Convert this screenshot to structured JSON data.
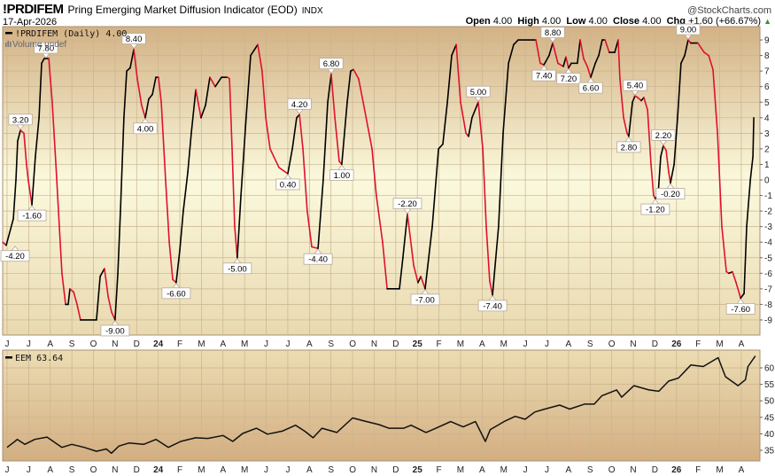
{
  "header": {
    "symbol": "!PRDIFEM",
    "name": "Pring Emerging Market Diffusion Indicator (EOD)",
    "exchange": "INDX",
    "brand": "@StockCharts.com",
    "date": "17-Apr-2026",
    "open_label": "Open",
    "open": "4.00",
    "high_label": "High",
    "high": "4.00",
    "low_label": "Low",
    "low": "4.00",
    "close_label": "Close",
    "close": "4.00",
    "chg_label": "Chg",
    "chg": "+1.60 (+66.67%)",
    "up_color": "#2a9a2a"
  },
  "colors": {
    "rising": "#000000",
    "falling": "#e0102f",
    "grid": "#c9b48e"
  },
  "chart_data": [
    {
      "type": "line",
      "title": "!PRDIFEM (Daily) 4.00",
      "volume_legend": "Volume undef",
      "x_unit": "months since Jun 2023",
      "ylim": [
        -10,
        10
      ],
      "yticks": [
        "9",
        "8",
        "7",
        "6",
        "5",
        "4",
        "3",
        "2",
        "1",
        "0",
        "-1",
        "-2",
        "-3",
        "-4",
        "-5",
        "-6",
        "-7",
        "-8",
        "-9"
      ],
      "month_labels": [
        "J",
        "J",
        "A",
        "S",
        "O",
        "N",
        "D",
        "24",
        "F",
        "M",
        "A",
        "M",
        "J",
        "J",
        "A",
        "S",
        "O",
        "N",
        "D",
        "25",
        "F",
        "M",
        "A",
        "M",
        "J",
        "J",
        "A",
        "S",
        "O",
        "N",
        "D",
        "26",
        "F",
        "M",
        "A"
      ],
      "grid": true,
      "points": [
        [
          -0.21,
          -4.0
        ],
        [
          -0.04,
          -4.2
        ],
        [
          0.29,
          -2.5
        ],
        [
          0.41,
          0
        ],
        [
          0.49,
          2.5
        ],
        [
          0.62,
          3.2
        ],
        [
          0.78,
          3.0
        ],
        [
          0.9,
          1
        ],
        [
          0.98,
          0
        ],
        [
          1.15,
          -1.6
        ],
        [
          1.31,
          1.5
        ],
        [
          1.48,
          4
        ],
        [
          1.6,
          7.5
        ],
        [
          1.72,
          7.8
        ],
        [
          1.93,
          7.8
        ],
        [
          2.09,
          5
        ],
        [
          2.26,
          1
        ],
        [
          2.42,
          -3
        ],
        [
          2.54,
          -6
        ],
        [
          2.71,
          -8
        ],
        [
          2.83,
          -8
        ],
        [
          2.91,
          -7
        ],
        [
          3.08,
          -7.2
        ],
        [
          3.24,
          -8
        ],
        [
          3.4,
          -9
        ],
        [
          4.14,
          -9
        ],
        [
          4.31,
          -6.2
        ],
        [
          4.51,
          -5.7
        ],
        [
          4.68,
          -7.5
        ],
        [
          4.84,
          -8.5
        ],
        [
          5.0,
          -9
        ],
        [
          5.13,
          -6
        ],
        [
          5.25,
          -2
        ],
        [
          5.41,
          4
        ],
        [
          5.54,
          7
        ],
        [
          5.7,
          7.2
        ],
        [
          5.87,
          8.4
        ],
        [
          6.03,
          6.5
        ],
        [
          6.23,
          4.8
        ],
        [
          6.4,
          4.0
        ],
        [
          6.56,
          5.2
        ],
        [
          6.73,
          5.5
        ],
        [
          6.89,
          6.6
        ],
        [
          7.01,
          6.6
        ],
        [
          7.14,
          5
        ],
        [
          7.34,
          0
        ],
        [
          7.51,
          -4
        ],
        [
          7.67,
          -6.4
        ],
        [
          7.83,
          -6.6
        ],
        [
          8.0,
          -4.5
        ],
        [
          8.16,
          -2
        ],
        [
          8.37,
          0.5
        ],
        [
          8.53,
          3
        ],
        [
          8.74,
          5.8
        ],
        [
          8.86,
          4.9
        ],
        [
          8.98,
          4.0
        ],
        [
          9.19,
          4.8
        ],
        [
          9.39,
          6.6
        ],
        [
          9.64,
          6.0
        ],
        [
          9.93,
          6.6
        ],
        [
          10.21,
          6.6
        ],
        [
          10.3,
          6.5
        ],
        [
          10.42,
          2
        ],
        [
          10.54,
          -3
        ],
        [
          10.66,
          -5.0
        ],
        [
          10.83,
          -1
        ],
        [
          11.07,
          4
        ],
        [
          11.28,
          8
        ],
        [
          11.61,
          8.7
        ],
        [
          11.81,
          7
        ],
        [
          11.98,
          4
        ],
        [
          12.18,
          2
        ],
        [
          12.35,
          1.5
        ],
        [
          12.59,
          0.8
        ],
        [
          13.0,
          0.4
        ],
        [
          13.21,
          2
        ],
        [
          13.41,
          4
        ],
        [
          13.54,
          4.2
        ],
        [
          13.7,
          2
        ],
        [
          13.9,
          -2
        ],
        [
          14.11,
          -4.3
        ],
        [
          14.4,
          -4.4
        ],
        [
          14.64,
          0
        ],
        [
          14.85,
          5
        ],
        [
          15.01,
          6.8
        ],
        [
          15.18,
          4
        ],
        [
          15.38,
          1.2
        ],
        [
          15.5,
          1.0
        ],
        [
          15.75,
          5
        ],
        [
          15.91,
          7.0
        ],
        [
          16.04,
          7.1
        ],
        [
          16.28,
          6.5
        ],
        [
          16.49,
          5
        ],
        [
          16.9,
          2
        ],
        [
          17.1,
          -1
        ],
        [
          17.39,
          -4
        ],
        [
          17.6,
          -7.0
        ],
        [
          18.17,
          -7.0
        ],
        [
          18.33,
          -5
        ],
        [
          18.54,
          -2.2
        ],
        [
          18.83,
          -5.5
        ],
        [
          19.03,
          -6.6
        ],
        [
          19.16,
          -6.2
        ],
        [
          19.36,
          -7.0
        ],
        [
          19.69,
          -3
        ],
        [
          19.98,
          2
        ],
        [
          20.18,
          2.3
        ],
        [
          20.39,
          5
        ],
        [
          20.59,
          8.0
        ],
        [
          20.8,
          8.7
        ],
        [
          21.0,
          5
        ],
        [
          21.25,
          3
        ],
        [
          21.37,
          2.8
        ],
        [
          21.53,
          4
        ],
        [
          21.82,
          5.0
        ],
        [
          22.03,
          2
        ],
        [
          22.19,
          -3
        ],
        [
          22.35,
          -6.5
        ],
        [
          22.48,
          -7.4
        ],
        [
          22.76,
          -3
        ],
        [
          22.97,
          3
        ],
        [
          23.22,
          7.5
        ],
        [
          23.46,
          8.7
        ],
        [
          23.67,
          9.0
        ],
        [
          24.49,
          9.0
        ],
        [
          24.69,
          7.5
        ],
        [
          24.86,
          7.4
        ],
        [
          25.1,
          8.0
        ],
        [
          25.27,
          8.8
        ],
        [
          25.51,
          7.5
        ],
        [
          25.76,
          7.3
        ],
        [
          25.88,
          7.9
        ],
        [
          26.0,
          7.2
        ],
        [
          26.13,
          7.5
        ],
        [
          26.41,
          7.5
        ],
        [
          26.54,
          9.0
        ],
        [
          26.7,
          7.8
        ],
        [
          26.87,
          7.3
        ],
        [
          27.03,
          6.6
        ],
        [
          27.24,
          7.5
        ],
        [
          27.4,
          8.0
        ],
        [
          27.56,
          9.0
        ],
        [
          27.69,
          9.0
        ],
        [
          27.89,
          8.2
        ],
        [
          28.14,
          8.2
        ],
        [
          28.3,
          9.0
        ],
        [
          28.38,
          6.5
        ],
        [
          28.55,
          4
        ],
        [
          28.71,
          3
        ],
        [
          28.79,
          2.8
        ],
        [
          28.96,
          5.0
        ],
        [
          29.08,
          5.4
        ],
        [
          29.2,
          5.3
        ],
        [
          29.37,
          5.1
        ],
        [
          29.49,
          5.3
        ],
        [
          29.66,
          4.5
        ],
        [
          29.82,
          1
        ],
        [
          29.94,
          -1
        ],
        [
          30.02,
          -1.2
        ],
        [
          30.15,
          -0.9
        ],
        [
          30.27,
          1.5
        ],
        [
          30.39,
          2.2
        ],
        [
          30.52,
          1.9
        ],
        [
          30.64,
          0.5
        ],
        [
          30.72,
          -0.2
        ],
        [
          30.89,
          1
        ],
        [
          31.05,
          4
        ],
        [
          31.21,
          7.5
        ],
        [
          31.38,
          8.0
        ],
        [
          31.54,
          9.0
        ],
        [
          31.66,
          8.8
        ],
        [
          31.99,
          8.8
        ],
        [
          32.28,
          8.2
        ],
        [
          32.49,
          8.0
        ],
        [
          32.69,
          7.1
        ],
        [
          32.9,
          3
        ],
        [
          33.1,
          -3
        ],
        [
          33.31,
          -5.9
        ],
        [
          33.43,
          -6.0
        ],
        [
          33.59,
          -5.9
        ],
        [
          33.76,
          -6.6
        ],
        [
          33.97,
          -7.6
        ],
        [
          34.13,
          -7.3
        ],
        [
          34.25,
          -3
        ],
        [
          34.42,
          0
        ],
        [
          34.54,
          1.5
        ],
        [
          34.58,
          4.0
        ]
      ],
      "annotations": [
        {
          "x": -0.04,
          "y": -4.2,
          "text": "-4.20",
          "pos": "below"
        },
        {
          "x": 0.62,
          "y": 3.2,
          "text": "3.20",
          "pos": "above"
        },
        {
          "x": 1.15,
          "y": -1.6,
          "text": "-1.60",
          "pos": "below"
        },
        {
          "x": 1.8,
          "y": 7.8,
          "text": "7.80",
          "pos": "above"
        },
        {
          "x": 5.0,
          "y": -9.0,
          "text": "-9.00",
          "pos": "below"
        },
        {
          "x": 5.87,
          "y": 8.4,
          "text": "8.40",
          "pos": "above"
        },
        {
          "x": 6.4,
          "y": 4.0,
          "text": "4.00",
          "pos": "below"
        },
        {
          "x": 7.83,
          "y": -6.6,
          "text": "-6.60",
          "pos": "below"
        },
        {
          "x": 10.66,
          "y": -5.0,
          "text": "-5.00",
          "pos": "below"
        },
        {
          "x": 13.0,
          "y": 0.4,
          "text": "0.40",
          "pos": "below"
        },
        {
          "x": 13.54,
          "y": 4.2,
          "text": "4.20",
          "pos": "above"
        },
        {
          "x": 14.4,
          "y": -4.4,
          "text": "-4.40",
          "pos": "below"
        },
        {
          "x": 15.01,
          "y": 6.8,
          "text": "6.80",
          "pos": "above"
        },
        {
          "x": 15.5,
          "y": 1.0,
          "text": "1.00",
          "pos": "below"
        },
        {
          "x": 18.54,
          "y": -2.2,
          "text": "-2.20",
          "pos": "above"
        },
        {
          "x": 19.36,
          "y": -7.0,
          "text": "-7.00",
          "pos": "below"
        },
        {
          "x": 21.82,
          "y": 5.0,
          "text": "5.00",
          "pos": "above"
        },
        {
          "x": 22.48,
          "y": -7.4,
          "text": "-7.40",
          "pos": "below"
        },
        {
          "x": 24.86,
          "y": 7.4,
          "text": "7.40",
          "pos": "below"
        },
        {
          "x": 25.27,
          "y": 8.8,
          "text": "8.80",
          "pos": "above"
        },
        {
          "x": 26.0,
          "y": 7.2,
          "text": "7.20",
          "pos": "below"
        },
        {
          "x": 27.03,
          "y": 6.6,
          "text": "6.60",
          "pos": "below"
        },
        {
          "x": 28.79,
          "y": 2.8,
          "text": "2.80",
          "pos": "below"
        },
        {
          "x": 29.08,
          "y": 5.4,
          "text": "5.40",
          "pos": "above"
        },
        {
          "x": 30.02,
          "y": -1.2,
          "text": "-1.20",
          "pos": "below"
        },
        {
          "x": 30.39,
          "y": 2.2,
          "text": "2.20",
          "pos": "above"
        },
        {
          "x": 30.72,
          "y": -0.2,
          "text": "-0.20",
          "pos": "below"
        },
        {
          "x": 31.54,
          "y": 9.0,
          "text": "9.00",
          "pos": "above"
        },
        {
          "x": 33.97,
          "y": -7.6,
          "text": "-7.60",
          "pos": "below"
        }
      ]
    },
    {
      "type": "line",
      "title": "EEM 63.64",
      "x_unit": "months since Jun 2023",
      "ylim": [
        32.5,
        65.5
      ],
      "yticks": [
        "60",
        "55",
        "50",
        "45",
        "40",
        "35"
      ],
      "month_labels": [
        "J",
        "J",
        "A",
        "S",
        "O",
        "N",
        "D",
        "24",
        "F",
        "M",
        "A",
        "M",
        "J",
        "J",
        "A",
        "S",
        "O",
        "N",
        "D",
        "25",
        "F",
        "M",
        "A",
        "M",
        "J",
        "J",
        "A",
        "S",
        "O",
        "N",
        "D",
        "26",
        "F",
        "M",
        "A"
      ],
      "grid": true,
      "points": [
        [
          0.0,
          35.9
        ],
        [
          0.36,
          37.7
        ],
        [
          0.47,
          38.3
        ],
        [
          0.82,
          36.8
        ],
        [
          1.28,
          38.3
        ],
        [
          1.85,
          39.0
        ],
        [
          2.54,
          35.9
        ],
        [
          3.0,
          36.8
        ],
        [
          3.57,
          35.9
        ],
        [
          4.14,
          34.7
        ],
        [
          4.6,
          35.4
        ],
        [
          4.83,
          34.1
        ],
        [
          5.18,
          36.3
        ],
        [
          5.64,
          37.2
        ],
        [
          6.32,
          36.8
        ],
        [
          6.9,
          38.3
        ],
        [
          7.47,
          35.9
        ],
        [
          8.04,
          37.7
        ],
        [
          8.73,
          38.8
        ],
        [
          9.3,
          38.6
        ],
        [
          10.0,
          39.5
        ],
        [
          10.45,
          37.7
        ],
        [
          10.91,
          40.1
        ],
        [
          11.55,
          41.7
        ],
        [
          12.06,
          39.9
        ],
        [
          12.74,
          40.8
        ],
        [
          13.36,
          42.6
        ],
        [
          13.78,
          40.8
        ],
        [
          14.17,
          38.8
        ],
        [
          14.58,
          41.7
        ],
        [
          15.27,
          40.4
        ],
        [
          16.0,
          44.8
        ],
        [
          16.53,
          43.9
        ],
        [
          17.22,
          42.8
        ],
        [
          17.68,
          41.7
        ],
        [
          18.37,
          41.7
        ],
        [
          18.71,
          42.6
        ],
        [
          19.4,
          40.4
        ],
        [
          19.86,
          41.7
        ],
        [
          20.54,
          43.7
        ],
        [
          21.12,
          42.1
        ],
        [
          21.69,
          43.7
        ],
        [
          22.15,
          37.7
        ],
        [
          22.38,
          41.3
        ],
        [
          23.07,
          43.9
        ],
        [
          23.53,
          45.3
        ],
        [
          23.99,
          44.4
        ],
        [
          24.44,
          46.6
        ],
        [
          24.9,
          47.5
        ],
        [
          25.59,
          48.7
        ],
        [
          26.05,
          47.5
        ],
        [
          26.74,
          49.0
        ],
        [
          27.19,
          49.0
        ],
        [
          27.54,
          51.5
        ],
        [
          28.23,
          53.3
        ],
        [
          28.46,
          51.1
        ],
        [
          29.03,
          54.6
        ],
        [
          29.72,
          53.3
        ],
        [
          30.18,
          52.9
        ],
        [
          30.64,
          56.0
        ],
        [
          31.09,
          56.9
        ],
        [
          31.67,
          60.9
        ],
        [
          32.24,
          60.4
        ],
        [
          32.93,
          63.1
        ],
        [
          33.27,
          57.3
        ],
        [
          33.85,
          54.6
        ],
        [
          34.19,
          56.4
        ],
        [
          34.31,
          60.4
        ],
        [
          34.65,
          63.6
        ]
      ]
    }
  ]
}
